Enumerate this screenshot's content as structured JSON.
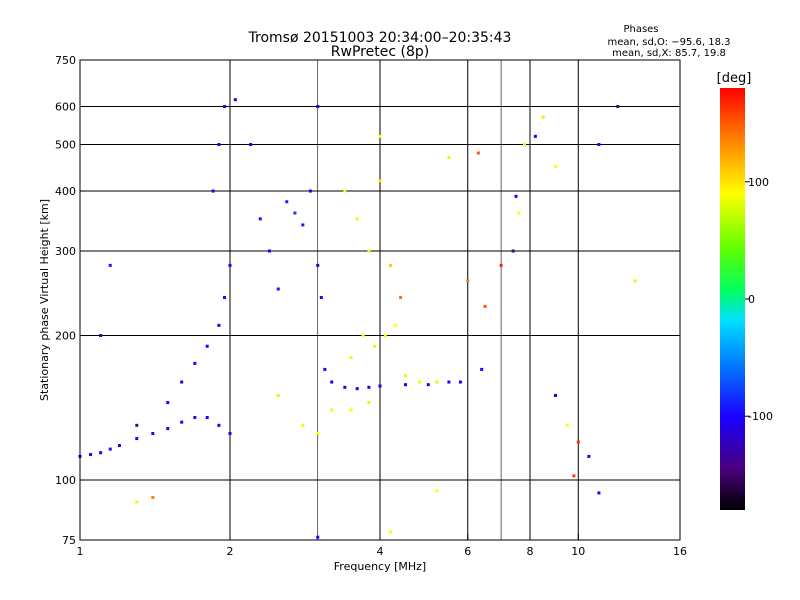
{
  "chart_data": {
    "type": "scatter",
    "title": "Tromsø 20151003 20:34:00–20:35:43",
    "subtitle": "RwPretec (8p)",
    "xlabel": "Frequency [MHz]",
    "ylabel": "Stationary phase Virtual Height [km]",
    "x_scale": "log",
    "y_scale": "log",
    "xlim": [
      1,
      16
    ],
    "ylim": [
      75,
      750
    ],
    "grid": true,
    "x_ticks": [
      {
        "value": 1,
        "label": "1"
      },
      {
        "value": 2,
        "label": "2"
      },
      {
        "value": 4,
        "label": "4"
      },
      {
        "value": 6,
        "label": "6"
      },
      {
        "value": 8,
        "label": "8"
      },
      {
        "value": 10,
        "label": "10"
      },
      {
        "value": 16,
        "label": "16"
      }
    ],
    "x_gridlines": [
      2,
      4,
      6,
      8,
      10
    ],
    "x_minor_gridlines": [
      3,
      7
    ],
    "y_ticks": [
      {
        "value": 75,
        "label": "75"
      },
      {
        "value": 100,
        "label": "100"
      },
      {
        "value": 200,
        "label": "200"
      },
      {
        "value": 300,
        "label": "300"
      },
      {
        "value": 400,
        "label": "400"
      },
      {
        "value": 500,
        "label": "500"
      },
      {
        "value": 600,
        "label": "600"
      },
      {
        "value": 750,
        "label": "750"
      }
    ],
    "y_gridlines": [
      100,
      200,
      300,
      400,
      500,
      600
    ],
    "phase_stats": {
      "title": "Phases",
      "line_o": "mean, sd,O: −95.6, 18.3",
      "line_x": "mean, sd,X:  85.7, 19.8"
    },
    "colorbar": {
      "label": "[deg]",
      "range": [
        -180,
        180
      ],
      "ticks": [
        {
          "value": 100,
          "label": "100"
        },
        {
          "value": 0,
          "label": "0"
        },
        {
          "value": -100,
          "label": "-100"
        }
      ]
    },
    "points": [
      {
        "x": 1.0,
        "y": 112,
        "phase": -100
      },
      {
        "x": 1.05,
        "y": 113,
        "phase": -105
      },
      {
        "x": 1.1,
        "y": 114,
        "phase": -100
      },
      {
        "x": 1.15,
        "y": 116,
        "phase": -95
      },
      {
        "x": 1.2,
        "y": 118,
        "phase": -100
      },
      {
        "x": 1.3,
        "y": 122,
        "phase": -100
      },
      {
        "x": 1.4,
        "y": 125,
        "phase": -105
      },
      {
        "x": 1.5,
        "y": 128,
        "phase": -100
      },
      {
        "x": 1.6,
        "y": 132,
        "phase": -100
      },
      {
        "x": 1.7,
        "y": 135,
        "phase": -110
      },
      {
        "x": 1.8,
        "y": 135,
        "phase": -100
      },
      {
        "x": 1.9,
        "y": 130,
        "phase": -100
      },
      {
        "x": 2.0,
        "y": 125,
        "phase": -110
      },
      {
        "x": 1.5,
        "y": 145,
        "phase": -100
      },
      {
        "x": 1.6,
        "y": 160,
        "phase": -110
      },
      {
        "x": 1.7,
        "y": 175,
        "phase": -105
      },
      {
        "x": 1.8,
        "y": 190,
        "phase": -100
      },
      {
        "x": 1.9,
        "y": 210,
        "phase": -100
      },
      {
        "x": 1.95,
        "y": 240,
        "phase": -105
      },
      {
        "x": 2.0,
        "y": 280,
        "phase": -100
      },
      {
        "x": 1.85,
        "y": 400,
        "phase": -110
      },
      {
        "x": 1.9,
        "y": 500,
        "phase": -100
      },
      {
        "x": 1.95,
        "y": 600,
        "phase": -110
      },
      {
        "x": 2.05,
        "y": 620,
        "phase": -100
      },
      {
        "x": 2.2,
        "y": 500,
        "phase": -100
      },
      {
        "x": 2.3,
        "y": 350,
        "phase": -95
      },
      {
        "x": 2.4,
        "y": 300,
        "phase": -100
      },
      {
        "x": 2.5,
        "y": 250,
        "phase": -90
      },
      {
        "x": 2.6,
        "y": 380,
        "phase": -85
      },
      {
        "x": 2.7,
        "y": 360,
        "phase": -80
      },
      {
        "x": 2.8,
        "y": 340,
        "phase": -90
      },
      {
        "x": 2.9,
        "y": 400,
        "phase": -100
      },
      {
        "x": 3.0,
        "y": 600,
        "phase": -120
      },
      {
        "x": 3.0,
        "y": 280,
        "phase": -120
      },
      {
        "x": 3.05,
        "y": 240,
        "phase": -115
      },
      {
        "x": 3.1,
        "y": 170,
        "phase": -110
      },
      {
        "x": 3.2,
        "y": 160,
        "phase": -110
      },
      {
        "x": 3.4,
        "y": 156,
        "phase": -100
      },
      {
        "x": 3.6,
        "y": 155,
        "phase": -100
      },
      {
        "x": 3.8,
        "y": 156,
        "phase": -100
      },
      {
        "x": 4.0,
        "y": 157,
        "phase": -100
      },
      {
        "x": 4.5,
        "y": 158,
        "phase": -105
      },
      {
        "x": 5.0,
        "y": 158,
        "phase": -100
      },
      {
        "x": 5.5,
        "y": 160,
        "phase": -100
      },
      {
        "x": 5.8,
        "y": 160,
        "phase": -105
      },
      {
        "x": 2.5,
        "y": 150,
        "phase": 80
      },
      {
        "x": 2.8,
        "y": 130,
        "phase": 85
      },
      {
        "x": 3.0,
        "y": 125,
        "phase": 90
      },
      {
        "x": 3.2,
        "y": 140,
        "phase": 85
      },
      {
        "x": 3.5,
        "y": 140,
        "phase": 90
      },
      {
        "x": 3.8,
        "y": 145,
        "phase": 80
      },
      {
        "x": 3.5,
        "y": 180,
        "phase": 85
      },
      {
        "x": 3.7,
        "y": 200,
        "phase": 90
      },
      {
        "x": 3.9,
        "y": 190,
        "phase": 80
      },
      {
        "x": 4.1,
        "y": 200,
        "phase": 85
      },
      {
        "x": 4.3,
        "y": 210,
        "phase": 90
      },
      {
        "x": 4.5,
        "y": 165,
        "phase": 95
      },
      {
        "x": 4.8,
        "y": 160,
        "phase": 85
      },
      {
        "x": 5.2,
        "y": 160,
        "phase": 80
      },
      {
        "x": 3.4,
        "y": 400,
        "phase": 90
      },
      {
        "x": 3.6,
        "y": 350,
        "phase": 85
      },
      {
        "x": 3.8,
        "y": 300,
        "phase": 95
      },
      {
        "x": 4.0,
        "y": 420,
        "phase": 100
      },
      {
        "x": 4.2,
        "y": 280,
        "phase": 110
      },
      {
        "x": 4.4,
        "y": 240,
        "phase": 140
      },
      {
        "x": 4.0,
        "y": 520,
        "phase": 90
      },
      {
        "x": 1.3,
        "y": 130,
        "phase": -140
      },
      {
        "x": 1.1,
        "y": 200,
        "phase": -120
      },
      {
        "x": 1.15,
        "y": 280,
        "phase": -90
      },
      {
        "x": 1.3,
        "y": 90,
        "phase": 80
      },
      {
        "x": 1.4,
        "y": 92,
        "phase": 140
      },
      {
        "x": 3.0,
        "y": 76,
        "phase": -100
      },
      {
        "x": 4.2,
        "y": 78,
        "phase": 90
      },
      {
        "x": 6.5,
        "y": 230,
        "phase": 150
      },
      {
        "x": 7.0,
        "y": 280,
        "phase": 170
      },
      {
        "x": 7.4,
        "y": 300,
        "phase": -140
      },
      {
        "x": 7.5,
        "y": 390,
        "phase": -100
      },
      {
        "x": 7.8,
        "y": 500,
        "phase": 80
      },
      {
        "x": 8.2,
        "y": 520,
        "phase": -100
      },
      {
        "x": 9.0,
        "y": 150,
        "phase": -120
      },
      {
        "x": 9.5,
        "y": 130,
        "phase": 90
      },
      {
        "x": 10.0,
        "y": 120,
        "phase": 165
      },
      {
        "x": 10.5,
        "y": 112,
        "phase": -100
      },
      {
        "x": 11.0,
        "y": 500,
        "phase": -100
      },
      {
        "x": 12.0,
        "y": 600,
        "phase": -140
      },
      {
        "x": 13.0,
        "y": 260,
        "phase": 80
      },
      {
        "x": 9.8,
        "y": 102,
        "phase": 160
      },
      {
        "x": 11.0,
        "y": 94,
        "phase": -100
      },
      {
        "x": 8.5,
        "y": 570,
        "phase": 100
      },
      {
        "x": 9.0,
        "y": 450,
        "phase": 90
      },
      {
        "x": 5.5,
        "y": 470,
        "phase": 80
      },
      {
        "x": 6.3,
        "y": 480,
        "phase": 150
      },
      {
        "x": 7.6,
        "y": 360,
        "phase": 90
      },
      {
        "x": 6.0,
        "y": 260,
        "phase": 140
      },
      {
        "x": 6.4,
        "y": 170,
        "phase": -100
      },
      {
        "x": 5.2,
        "y": 95,
        "phase": 90
      }
    ]
  }
}
